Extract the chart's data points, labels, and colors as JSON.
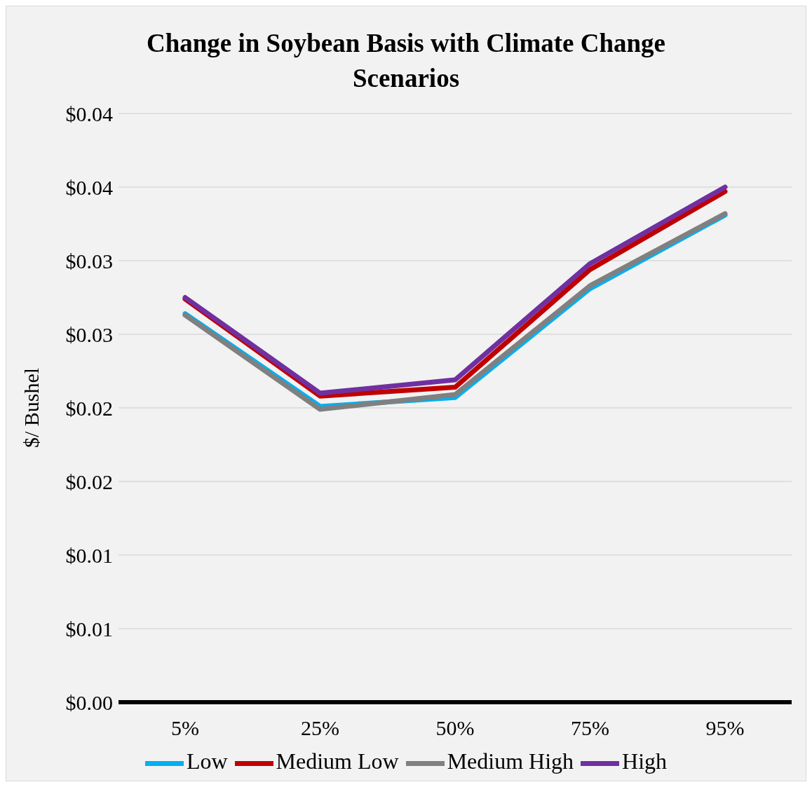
{
  "chart_data": {
    "type": "line",
    "title": "Change in Soybean Basis with Climate Change Scenarios",
    "ylabel": "$/ Bushel",
    "categories": [
      "5%",
      "25%",
      "50%",
      "75%",
      "95%"
    ],
    "series": [
      {
        "name": "Low",
        "color": "#00b0f0",
        "values": [
          0.0264,
          0.0201,
          0.0207,
          0.0281,
          0.0331
        ]
      },
      {
        "name": "Medium Low",
        "color": "#c00000",
        "values": [
          0.0274,
          0.0208,
          0.0214,
          0.0294,
          0.0347
        ]
      },
      {
        "name": "Medium High",
        "color": "#808080",
        "values": [
          0.0263,
          0.0199,
          0.0209,
          0.0283,
          0.0332
        ]
      },
      {
        "name": "High",
        "color": "#7030a0",
        "values": [
          0.0275,
          0.021,
          0.0219,
          0.0298,
          0.035
        ]
      }
    ],
    "ylim": [
      0,
      0.04
    ],
    "yticks": [
      {
        "value": 0,
        "label": "$0.00"
      },
      {
        "value": 0.005,
        "label": "$0.01"
      },
      {
        "value": 0.01,
        "label": "$0.01"
      },
      {
        "value": 0.015,
        "label": "$0.02"
      },
      {
        "value": 0.02,
        "label": "$0.02"
      },
      {
        "value": 0.025,
        "label": "$0.03"
      },
      {
        "value": 0.03,
        "label": "$0.03"
      },
      {
        "value": 0.035,
        "label": "$0.04"
      },
      {
        "value": 0.04,
        "label": "$0.04"
      }
    ],
    "grid": "y",
    "legend": "bottom",
    "marker": "none",
    "line_style": "solid"
  }
}
